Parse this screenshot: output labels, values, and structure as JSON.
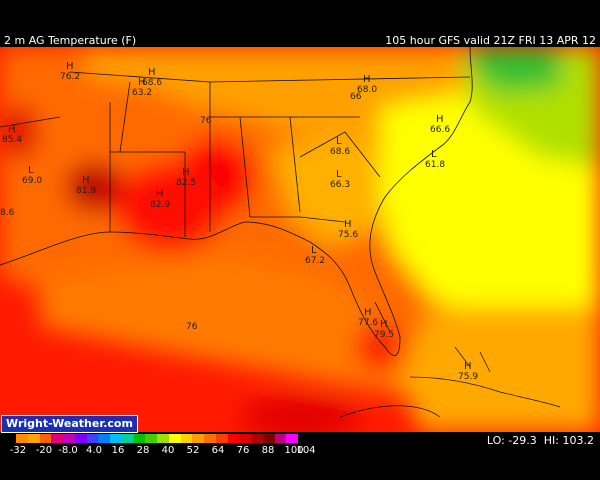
{
  "header": {
    "field": "2 m AG Temperature (F)",
    "valid": "105 hour GFS valid 21Z FRI 13 APR 12"
  },
  "credit": "Wright-Weather.com",
  "stats": {
    "lo_label": "LO:",
    "lo": "-29.3",
    "hi_label": "HI:",
    "hi": "103.2"
  },
  "scale": {
    "ticks": [
      "-32",
      "-20",
      "-8.0",
      "4.0",
      "16",
      "28",
      "40",
      "52",
      "64",
      "76",
      "88",
      "100",
      "104"
    ],
    "colors": [
      "#ff8c00",
      "#ffa500",
      "#ff6000",
      "#e0007c",
      "#c000c0",
      "#8000ff",
      "#4040ff",
      "#0080ff",
      "#00c0ff",
      "#00d0a0",
      "#00c000",
      "#40d000",
      "#a0e000",
      "#ffff00",
      "#ffd000",
      "#ffa000",
      "#ff7000",
      "#ff4000",
      "#ff0000",
      "#e00000",
      "#b00000",
      "#800000",
      "#c00080",
      "#ff00ff"
    ]
  },
  "markers": [
    {
      "type": "H",
      "value": "76.2"
    },
    {
      "type": "H",
      "value": "63.2"
    },
    {
      "type": "H",
      "value": "68.6"
    },
    {
      "type": "H",
      "value": "68.0"
    },
    {
      "type": "H",
      "value": "85.4"
    },
    {
      "type": "L",
      "value": "69.0"
    },
    {
      "type": "H",
      "value": "81.9"
    },
    {
      "type": "H",
      "value": "82.5"
    },
    {
      "type": "H",
      "value": "82.9"
    },
    {
      "type": "L",
      "value": "68.6"
    },
    {
      "type": "L",
      "value": "66.3"
    },
    {
      "type": "L",
      "value": "61.8"
    },
    {
      "type": "H",
      "value": "66.6"
    },
    {
      "type": "H",
      "value": "75.6"
    },
    {
      "type": "L",
      "value": "67.2"
    },
    {
      "type": "H",
      "value": "77.6"
    },
    {
      "type": "H",
      "value": "79.5"
    },
    {
      "type": "H",
      "value": "75.9"
    }
  ],
  "labels": {
    "left_edge_a": "8.6",
    "mid_a": "76",
    "upper_mid": "76",
    "orange_66": "66"
  }
}
